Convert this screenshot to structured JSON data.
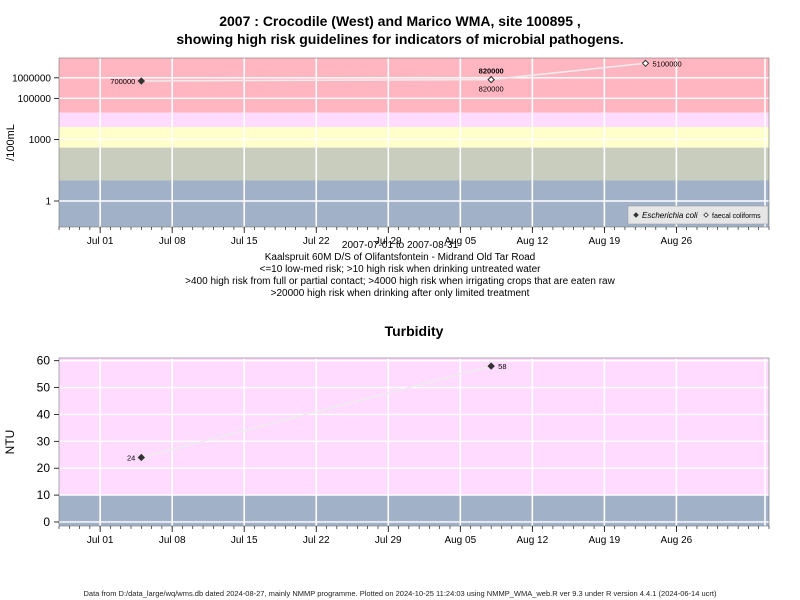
{
  "page": {
    "title_line1": "2007 : Crocodile (West) and Marico WMA, site 100895 ,",
    "title_line2": "showing high risk guidelines for indicators of microbial pathogens.",
    "subtitle": [
      "2007-07-01 to 2007-08-31",
      "Kaalspruit 60M D/S of Olifantsfontein - Midrand Old Tar Road",
      "<=10 low-med risk; >10 high risk when drinking untreated water",
      ">400 high risk from full or partial contact; >4000 high risk when irrigating crops that are eaten raw",
      ">20000 high risk when drinking after only limited treatment"
    ],
    "footer": "Data from D:/data_large/wq/wms.db dated 2024-08-27, mainly NMMP programme. Plotted on 2024-10-25 11:24:03 using NMMP_WMA_web.R ver 9.3 under R version 4.4.1 (2024-06-14 ucrt)"
  },
  "colors": {
    "red_band": "#ffb6c1",
    "pink_band": "#ffdcff",
    "yellow_band": "#ffffcc",
    "grey_band": "#c8cdbe",
    "blue_band": "#a0b1c8",
    "line": "#ececec",
    "marker": "#333333",
    "grid": "#ffffff"
  },
  "chart_data": [
    {
      "type": "line",
      "title": "",
      "xlabel": "",
      "ylabel": "/100mL",
      "y_scale": "log",
      "x_range": [
        "2007-06-27",
        "2007-09-04"
      ],
      "x_ticks": [
        "2007-07-01",
        "2007-07-08",
        "2007-07-15",
        "2007-07-22",
        "2007-07-29",
        "2007-08-05",
        "2007-08-12",
        "2007-08-19",
        "2007-08-26"
      ],
      "x_tick_labels": [
        "Jul 01",
        "Jul 08",
        "Jul 15",
        "Jul 22",
        "Jul 29",
        "Aug 05",
        "Aug 12",
        "Aug 19",
        "Aug 26"
      ],
      "y_ticks": [
        1,
        1000,
        100000,
        1000000
      ],
      "y_tick_labels": [
        "1",
        "1000",
        "100000",
        "1000000"
      ],
      "series": [
        {
          "name": "Escherichia coli",
          "marker": "filled-diamond",
          "points": [
            {
              "x": "2007-07-05",
              "y": 700000,
              "label": "700000"
            },
            {
              "x": "2007-08-08",
              "y": 820000,
              "label": "820000"
            }
          ]
        },
        {
          "name": "faecal coliforms",
          "marker": "diamond",
          "points": [
            {
              "x": "2007-08-08",
              "y": 820000,
              "label": "820000"
            },
            {
              "x": "2007-08-23",
              "y": 5100000,
              "label": "5100000"
            }
          ]
        }
      ],
      "legend_position": "bottom-right"
    },
    {
      "type": "line",
      "title": "Turbidity",
      "xlabel": "",
      "ylabel": "NTU",
      "x_range": [
        "2007-06-27",
        "2007-09-04"
      ],
      "x_ticks": [
        "2007-07-01",
        "2007-07-08",
        "2007-07-15",
        "2007-07-22",
        "2007-07-29",
        "2007-08-05",
        "2007-08-12",
        "2007-08-19",
        "2007-08-26"
      ],
      "x_tick_labels": [
        "Jul 01",
        "Jul 08",
        "Jul 15",
        "Jul 22",
        "Jul 29",
        "Aug 05",
        "Aug 12",
        "Aug 19",
        "Aug 26"
      ],
      "y_ticks": [
        0,
        10,
        20,
        30,
        40,
        50,
        60
      ],
      "y_tick_labels": [
        "0",
        "10",
        "20",
        "30",
        "40",
        "50",
        "60"
      ],
      "ylim": [
        -1.5,
        61
      ],
      "series": [
        {
          "name": "",
          "marker": "filled-diamond",
          "points": [
            {
              "x": "2007-07-05",
              "y": 24,
              "label": "24"
            },
            {
              "x": "2007-08-08",
              "y": 58,
              "label": "58"
            }
          ]
        }
      ]
    }
  ]
}
